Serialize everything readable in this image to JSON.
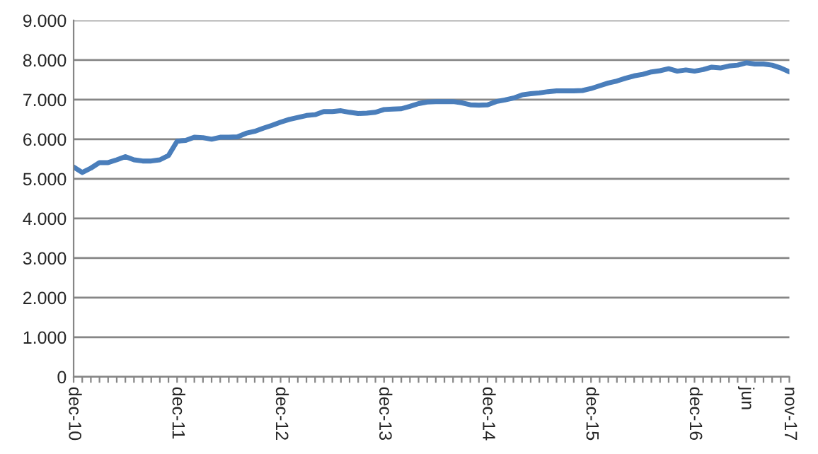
{
  "chart_data": {
    "type": "line",
    "categories": [
      "dec-10",
      null,
      null,
      null,
      null,
      null,
      null,
      null,
      null,
      null,
      null,
      null,
      "dec-11",
      null,
      null,
      null,
      null,
      null,
      null,
      null,
      null,
      null,
      null,
      null,
      "dec-12",
      null,
      null,
      null,
      null,
      null,
      null,
      null,
      null,
      null,
      null,
      null,
      "dec-13",
      null,
      null,
      null,
      null,
      null,
      null,
      null,
      null,
      null,
      null,
      null,
      "dec-14",
      null,
      null,
      null,
      null,
      null,
      null,
      null,
      null,
      null,
      null,
      null,
      "dec-15",
      null,
      null,
      null,
      null,
      null,
      null,
      null,
      null,
      null,
      null,
      null,
      "dec-16",
      null,
      null,
      null,
      null,
      null,
      "jun",
      null,
      null,
      null,
      null,
      "nov-17"
    ],
    "series": [
      {
        "color": "#4a7ebb",
        "values": [
          5300,
          5160,
          5270,
          5410,
          5410,
          5480,
          5560,
          5480,
          5450,
          5450,
          5480,
          5590,
          5950,
          5970,
          6050,
          6040,
          6000,
          6050,
          6050,
          6060,
          6150,
          6200,
          6280,
          6350,
          6430,
          6500,
          6550,
          6600,
          6620,
          6700,
          6700,
          6720,
          6680,
          6650,
          6660,
          6680,
          6750,
          6760,
          6770,
          6830,
          6900,
          6940,
          6950,
          6950,
          6950,
          6920,
          6870,
          6860,
          6870,
          6950,
          6990,
          7040,
          7120,
          7150,
          7170,
          7200,
          7220,
          7220,
          7220,
          7230,
          7280,
          7350,
          7420,
          7470,
          7540,
          7600,
          7640,
          7700,
          7730,
          7780,
          7720,
          7750,
          7720,
          7760,
          7820,
          7800,
          7850,
          7870,
          7930,
          7900,
          7900,
          7870,
          7800,
          7700
        ]
      }
    ],
    "ylim": [
      0,
      9000
    ],
    "yticks": [
      {
        "value": 0,
        "label": "0"
      },
      {
        "value": 1000,
        "label": "1.000"
      },
      {
        "value": 2000,
        "label": "2.000"
      },
      {
        "value": 3000,
        "label": "3.000"
      },
      {
        "value": 4000,
        "label": "4.000"
      },
      {
        "value": 5000,
        "label": "5.000"
      },
      {
        "value": 6000,
        "label": "6.000"
      },
      {
        "value": 7000,
        "label": "7.000"
      },
      {
        "value": 8000,
        "label": "8.000"
      },
      {
        "value": 9000,
        "label": "9.000"
      }
    ],
    "grid": "y",
    "marker": "none",
    "line_style": "solid"
  }
}
